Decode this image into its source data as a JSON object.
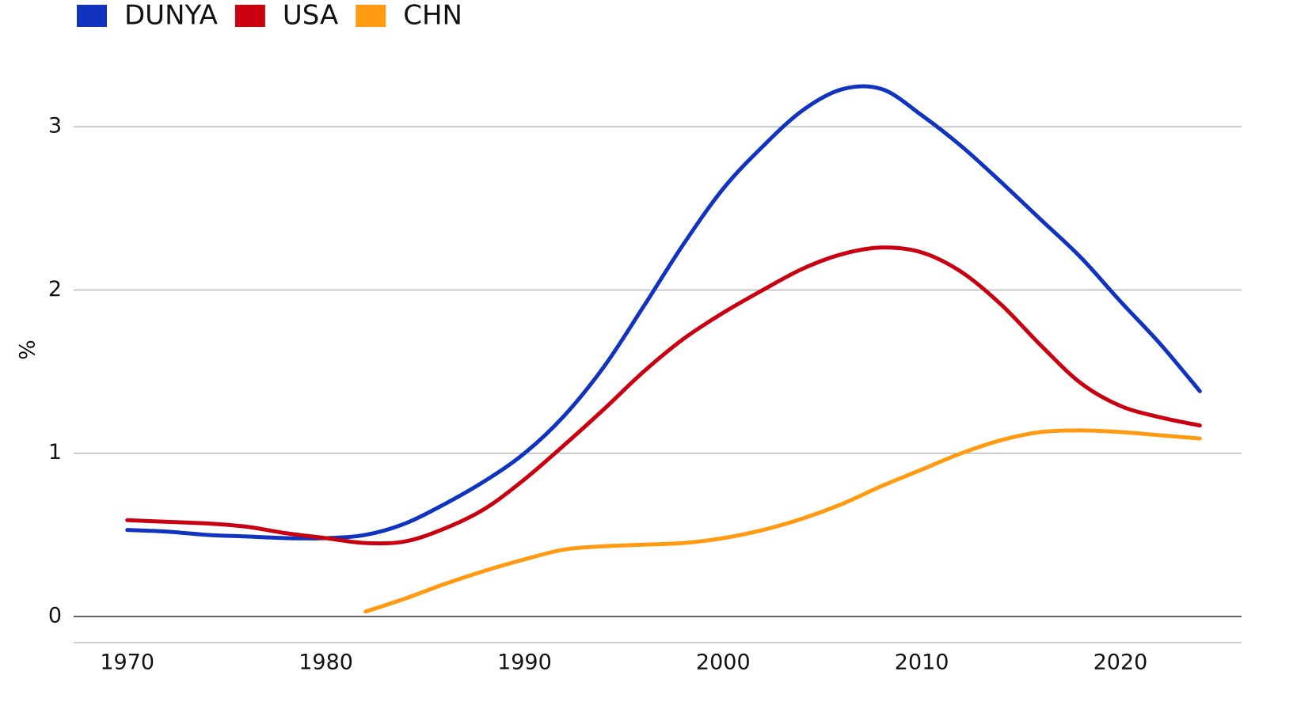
{
  "chart_data": {
    "type": "line",
    "y_label": "%",
    "x": [
      1970,
      1972,
      1974,
      1976,
      1978,
      1980,
      1982,
      1984,
      1986,
      1988,
      1990,
      1992,
      1994,
      1996,
      1998,
      2000,
      2002,
      2004,
      2006,
      2008,
      2010,
      2012,
      2014,
      2016,
      2018,
      2020,
      2022,
      2024
    ],
    "series": [
      {
        "name": "DUNYA",
        "color": "#1034c0",
        "values": [
          0.53,
          0.52,
          0.5,
          0.49,
          0.48,
          0.48,
          0.5,
          0.57,
          0.69,
          0.83,
          1.0,
          1.23,
          1.53,
          1.9,
          2.28,
          2.62,
          2.88,
          3.1,
          3.23,
          3.23,
          3.07,
          2.88,
          2.66,
          2.43,
          2.2,
          1.93,
          1.67,
          1.38
        ]
      },
      {
        "name": "USA",
        "color": "#c8000f",
        "values": [
          0.59,
          0.58,
          0.57,
          0.55,
          0.51,
          0.48,
          0.45,
          0.46,
          0.54,
          0.66,
          0.84,
          1.05,
          1.27,
          1.5,
          1.7,
          1.86,
          2.0,
          2.13,
          2.22,
          2.26,
          2.23,
          2.11,
          1.91,
          1.66,
          1.43,
          1.29,
          1.22,
          1.17
        ]
      },
      {
        "name": "CHN",
        "color": "#ff9a12",
        "values": [
          null,
          null,
          null,
          null,
          null,
          null,
          0.03,
          0.11,
          0.2,
          0.28,
          0.35,
          0.41,
          0.43,
          0.44,
          0.45,
          0.48,
          0.53,
          0.6,
          0.69,
          0.8,
          0.9,
          1.0,
          1.08,
          1.13,
          1.14,
          1.13,
          1.11,
          1.09
        ]
      }
    ],
    "xlim": [
      1967.3,
      2026.1
    ],
    "xticks": [
      1970,
      1980,
      1990,
      2000,
      2010,
      2020
    ],
    "ylim": [
      -0.16,
      3.4
    ],
    "yticks": [
      0,
      1,
      2,
      3
    ],
    "grid": true,
    "legend": "top-left"
  }
}
